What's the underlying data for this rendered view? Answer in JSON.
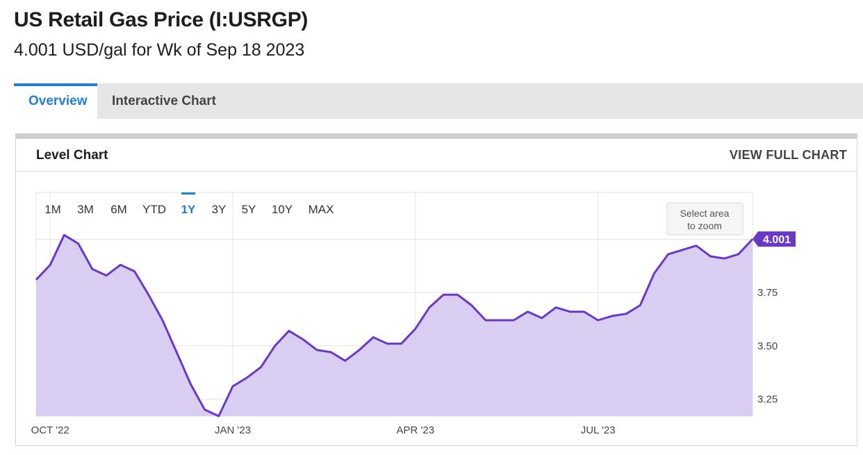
{
  "header": {
    "title": "US Retail Gas Price (I:USRGP)",
    "subtitle": "4.001 USD/gal for Wk of Sep 18 2023"
  },
  "tabs": [
    {
      "label": "Overview",
      "active": true
    },
    {
      "label": "Interactive Chart",
      "active": false
    }
  ],
  "panel": {
    "title": "Level Chart",
    "view_full_label": "VIEW FULL CHART"
  },
  "range_buttons": [
    "1M",
    "3M",
    "6M",
    "YTD",
    "1Y",
    "3Y",
    "5Y",
    "10Y",
    "MAX"
  ],
  "active_range": "1Y",
  "zoom_hint": [
    "Select area",
    "to zoom"
  ],
  "colors": {
    "accent": "#1f7fd6",
    "line": "#6a38c9",
    "fill": "#d9cdf1",
    "badge": "#6a38c9"
  },
  "chart_data": {
    "type": "area",
    "title": "",
    "xlabel": "",
    "ylabel": "",
    "ylim": [
      3.17,
      4.22
    ],
    "y_ticks": [
      "3.25",
      "3.50",
      "3.75",
      "4.00"
    ],
    "x_ticks": [
      {
        "label": "OCT '22",
        "date": "2022-10-03"
      },
      {
        "label": "JAN '23",
        "date": "2023-01-02"
      },
      {
        "label": "APR '23",
        "date": "2023-04-03"
      },
      {
        "label": "JUL '23",
        "date": "2023-07-03"
      }
    ],
    "last_value_label": "4.001",
    "grid": true,
    "series": [
      {
        "x": [
          "2022-09-26",
          "2022-10-03",
          "2022-10-10",
          "2022-10-17",
          "2022-10-24",
          "2022-10-31",
          "2022-11-07",
          "2022-11-14",
          "2022-11-21",
          "2022-11-28",
          "2022-12-05",
          "2022-12-12",
          "2022-12-19",
          "2022-12-26",
          "2023-01-02",
          "2023-01-09",
          "2023-01-16",
          "2023-01-23",
          "2023-01-30",
          "2023-02-06",
          "2023-02-13",
          "2023-02-20",
          "2023-02-27",
          "2023-03-06",
          "2023-03-13",
          "2023-03-20",
          "2023-03-27",
          "2023-04-03",
          "2023-04-10",
          "2023-04-17",
          "2023-04-24",
          "2023-05-01",
          "2023-05-08",
          "2023-05-15",
          "2023-05-22",
          "2023-05-29",
          "2023-06-05",
          "2023-06-12",
          "2023-06-19",
          "2023-06-26",
          "2023-07-03",
          "2023-07-10",
          "2023-07-17",
          "2023-07-24",
          "2023-07-31",
          "2023-08-07",
          "2023-08-14",
          "2023-08-21",
          "2023-08-28",
          "2023-09-04",
          "2023-09-11",
          "2023-09-18"
        ],
        "values": [
          3.81,
          3.88,
          4.02,
          3.98,
          3.86,
          3.83,
          3.88,
          3.85,
          3.74,
          3.62,
          3.47,
          3.32,
          3.2,
          3.17,
          3.31,
          3.35,
          3.4,
          3.5,
          3.57,
          3.53,
          3.48,
          3.47,
          3.43,
          3.48,
          3.54,
          3.51,
          3.51,
          3.58,
          3.68,
          3.74,
          3.74,
          3.69,
          3.62,
          3.62,
          3.62,
          3.66,
          3.63,
          3.68,
          3.66,
          3.66,
          3.62,
          3.64,
          3.65,
          3.69,
          3.84,
          3.93,
          3.95,
          3.97,
          3.92,
          3.91,
          3.93,
          4.001
        ]
      }
    ]
  }
}
